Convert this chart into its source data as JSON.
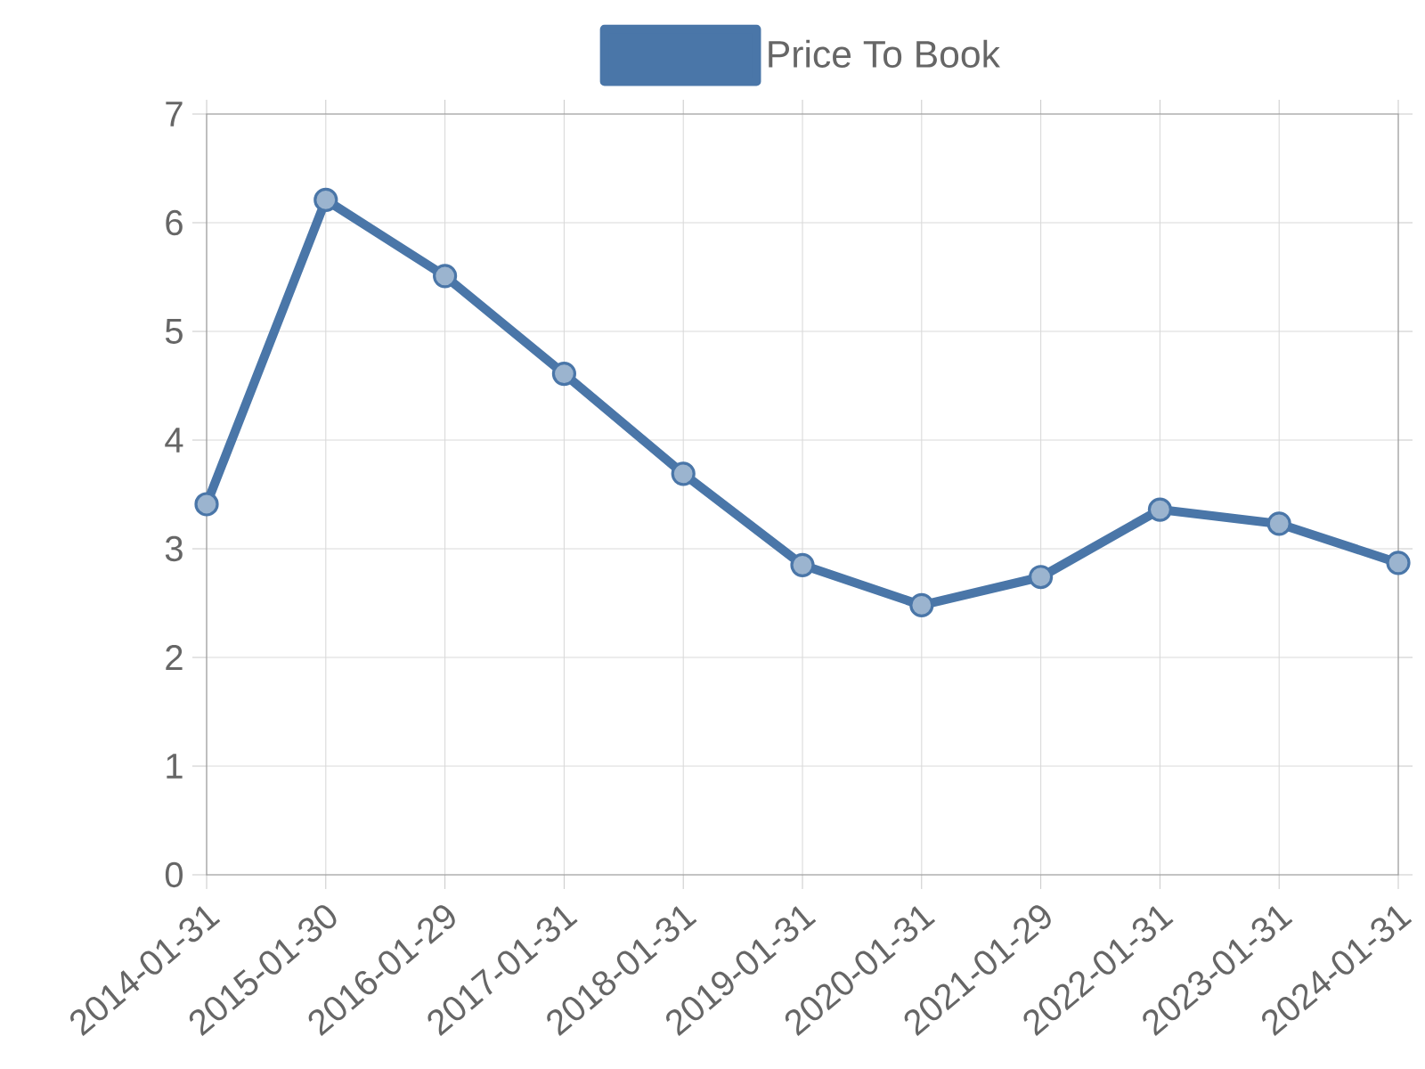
{
  "chart_data": {
    "type": "line",
    "categories": [
      "2014-01-31",
      "2015-01-30",
      "2016-01-29",
      "2017-01-31",
      "2018-01-31",
      "2019-01-31",
      "2020-01-31",
      "2021-01-29",
      "2022-01-31",
      "2023-01-31",
      "2024-01-31"
    ],
    "series": [
      {
        "name": "Price To Book",
        "color": "#4a76a8",
        "values": [
          3.41,
          6.21,
          5.51,
          4.61,
          3.69,
          2.85,
          2.48,
          2.74,
          3.36,
          3.23,
          2.87
        ]
      }
    ],
    "ylim": [
      0,
      7
    ],
    "yticks": [
      0,
      1,
      2,
      3,
      4,
      5,
      6,
      7
    ],
    "grid": true,
    "legend": "top",
    "marker": "circle",
    "line_style": "solid"
  }
}
